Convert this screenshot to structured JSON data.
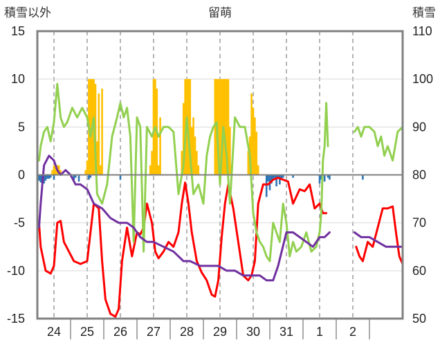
{
  "chart_data": {
    "type": "line",
    "title": "留萌",
    "ylabel_left": "積雪以外",
    "ylabel_right": "積雪",
    "ylim_left": [
      -15,
      15
    ],
    "ylim_right": [
      50,
      110
    ],
    "yticks_left": [
      "15",
      "10",
      "5",
      "0",
      "-5",
      "-10",
      "-15"
    ],
    "yticks_right": [
      "110",
      "100",
      "90",
      "80",
      "70",
      "60",
      "50"
    ],
    "categories": [
      "24",
      "25",
      "26",
      "27",
      "28",
      "29",
      "30",
      "31",
      "1",
      "2"
    ],
    "x_range": [
      23.5,
      34.5
    ],
    "grid": true,
    "colors": {
      "red": "#ff0000",
      "green": "#92d050",
      "purple": "#7030a0",
      "bars_yellow": "#ffc000",
      "bars_blue": "#2e75b6",
      "frame": "#808080",
      "zero_line": "#808080"
    },
    "series": [
      {
        "axis": "left",
        "color": "#ff0000",
        "x": [
          23.55,
          23.6,
          23.75,
          23.9,
          24.0,
          24.1,
          24.2,
          24.3,
          24.45,
          24.6,
          24.8,
          25.0,
          25.2,
          25.35,
          25.45,
          25.55,
          25.7,
          25.85,
          25.95,
          26.05,
          26.2,
          26.35,
          26.5,
          26.6,
          26.7,
          26.8,
          26.95,
          27.05,
          27.15,
          27.3,
          27.45,
          27.6,
          27.75,
          27.85,
          27.95,
          28.05,
          28.15,
          28.3,
          28.45,
          28.6,
          28.75,
          28.85,
          28.95,
          29.05,
          29.15,
          29.25,
          29.4,
          29.55,
          29.7,
          29.85,
          29.95,
          30.05,
          30.15,
          30.3,
          30.45,
          30.6,
          30.75,
          30.9,
          31.05,
          31.2,
          31.4,
          31.55,
          31.7,
          31.85,
          32.0,
          32.1,
          32.2
        ],
        "y": [
          -5,
          -7.5,
          -10,
          -10.3,
          -9.5,
          -5,
          -4.8,
          -7,
          -8,
          -9,
          -9.3,
          -9,
          -3,
          -3.5,
          -9,
          -13,
          -14.5,
          -14.8,
          -14,
          -9,
          -5.5,
          -8.5,
          -6,
          -6.2,
          -5.5,
          -3,
          -5,
          -8,
          -8.7,
          -8,
          -7,
          -7.5,
          -6,
          -3,
          -0.8,
          -3,
          -6,
          -9,
          -10.2,
          -11,
          -12.5,
          -12.7,
          -11,
          -6.5,
          -3,
          -1,
          -3.5,
          -7,
          -10.5,
          -11,
          -10.5,
          -9,
          -3,
          -1,
          -1,
          -0.5,
          -0.3,
          -0.5,
          -0.7,
          -3,
          -1.5,
          -1.7,
          -1,
          -3.5,
          -3,
          -4,
          -4
        ]
      },
      {
        "axis": "left",
        "color": "#ff0000",
        "x": [
          33.1,
          33.2,
          33.3,
          33.45,
          33.6,
          33.75,
          33.9,
          34.05,
          34.2,
          34.3,
          34.4,
          34.5
        ],
        "y": [
          -7.5,
          -8.5,
          -9,
          -7,
          -7.5,
          -5.5,
          -3.5,
          -3.5,
          -3.3,
          -6,
          -8.5,
          -9.3
        ]
      },
      {
        "axis": "left",
        "color": "#92d050",
        "x": [
          23.55,
          23.6,
          23.7,
          23.8,
          23.9,
          24.0,
          24.1,
          24.2,
          24.3,
          24.4,
          24.55,
          24.7,
          24.85,
          25.0,
          25.1,
          25.2,
          25.3,
          25.45,
          25.6,
          25.75,
          25.9,
          26.0,
          26.1,
          26.2,
          26.3,
          26.4,
          26.5,
          26.6,
          26.7,
          26.8,
          26.95,
          27.05,
          27.15,
          27.3,
          27.45,
          27.6,
          27.75,
          27.9,
          28.0,
          28.1,
          28.2,
          28.35,
          28.5,
          28.6,
          28.7,
          28.8,
          28.9,
          29.0,
          29.1,
          29.2,
          29.3,
          29.45,
          29.6,
          29.75,
          29.9,
          30.0,
          30.1,
          30.2,
          30.3,
          30.4,
          30.5,
          30.6,
          30.7,
          30.8,
          30.9,
          31.0,
          31.1,
          31.2,
          31.3,
          31.45,
          31.6,
          31.75,
          31.9,
          32.0,
          32.05,
          32.1,
          32.15,
          32.2,
          32.25
        ],
        "y": [
          1.5,
          3,
          4.5,
          5,
          3.5,
          5.5,
          9.5,
          6,
          5,
          5.5,
          7,
          6,
          7,
          6,
          4,
          6,
          -2,
          -3,
          -1,
          4,
          6,
          7.5,
          6,
          7,
          4,
          -7,
          6,
          5,
          -8,
          5,
          4,
          5,
          4,
          5,
          5,
          4.5,
          -2,
          1,
          6,
          2,
          -2,
          -1,
          -3,
          2,
          4,
          5,
          5.5,
          -1,
          5,
          2,
          -3,
          6,
          5,
          5,
          2,
          -4,
          -6,
          -7,
          -7.5,
          -8.5,
          -9,
          -5,
          -6,
          -7,
          -3,
          -5,
          -8.5,
          -7,
          -8,
          -7.5,
          -6,
          -8,
          -7.5,
          -6,
          -4,
          1.5,
          3,
          7.5,
          3
        ]
      },
      {
        "axis": "left",
        "color": "#92d050",
        "x": [
          33.05,
          33.15,
          33.25,
          33.35,
          33.5,
          33.65,
          33.75,
          33.85,
          33.95,
          34.05,
          34.2,
          34.35,
          34.5
        ],
        "y": [
          4.5,
          5,
          4,
          5,
          5,
          4.5,
          3,
          4,
          2,
          3,
          1.5,
          4.5,
          5
        ]
      },
      {
        "axis": "right",
        "color": "#7030a0",
        "x": [
          23.55,
          23.6,
          23.7,
          23.85,
          24.0,
          24.1,
          24.2,
          24.35,
          24.5,
          24.65,
          24.8,
          25.0,
          25.2,
          25.45,
          25.7,
          25.95,
          26.2,
          26.4,
          26.6,
          26.8,
          27.0,
          27.3,
          27.6,
          27.9,
          28.1,
          28.4,
          28.7,
          28.95,
          29.2,
          29.45,
          29.7,
          29.95,
          30.2,
          30.4,
          30.5,
          30.6,
          30.75,
          31.0,
          31.2,
          31.4,
          31.6,
          31.8,
          32.0,
          32.15,
          32.3
        ],
        "y": [
          69,
          74,
          82,
          84,
          83,
          81,
          80,
          81,
          80,
          78,
          78,
          77,
          74,
          73,
          71,
          70,
          70,
          69,
          67,
          66,
          66,
          65,
          64,
          62,
          62,
          61,
          61,
          61,
          60,
          60,
          59,
          59,
          59,
          58,
          58,
          58,
          61,
          68,
          68,
          67,
          66,
          65,
          67,
          67,
          68
        ]
      },
      {
        "axis": "right",
        "color": "#7030a0",
        "x": [
          33.05,
          33.25,
          33.5,
          33.75,
          34.0,
          34.25,
          34.5
        ],
        "y": [
          68,
          67,
          67,
          66,
          65,
          65,
          65
        ]
      },
      {
        "axis": "right",
        "type": "bar",
        "color": "#ffc000",
        "x": [
          23.95,
          24.0,
          24.05,
          24.1,
          24.15,
          24.2,
          24.95,
          25.0,
          25.05,
          25.1,
          25.15,
          25.2,
          25.25,
          25.3,
          25.35,
          25.4,
          25.45,
          26.9,
          26.95,
          27.0,
          27.05,
          27.1,
          27.15,
          27.2,
          27.85,
          27.9,
          27.95,
          28.0,
          28.05,
          28.1,
          28.15,
          28.2,
          28.25,
          28.3,
          28.35,
          28.85,
          28.9,
          28.95,
          29.0,
          29.05,
          29.1,
          29.15,
          29.2,
          29.25,
          29.3,
          29.35,
          29.85,
          29.9,
          29.95,
          30.0,
          30.05,
          30.1,
          30.15
        ],
        "y": [
          81,
          82,
          82,
          82,
          82,
          81,
          81,
          83,
          100,
          100,
          100,
          100,
          99,
          87,
          97,
          82,
          98,
          82,
          85,
          100,
          100,
          98,
          82,
          92,
          85,
          95,
          100,
          100,
          100,
          100,
          90,
          92,
          88,
          85,
          82,
          100,
          100,
          100,
          100,
          100,
          100,
          100,
          100,
          100,
          90,
          82,
          85,
          88,
          97,
          94,
          92,
          89,
          82
        ]
      },
      {
        "axis": "left",
        "type": "bar",
        "color": "#2e75b6",
        "x": [
          23.55,
          23.6,
          23.65,
          23.7,
          23.75,
          23.8,
          23.85,
          23.9,
          24.0,
          24.6,
          24.65,
          24.75,
          25.05,
          25.1,
          26.0,
          30.4,
          30.45,
          30.5,
          30.55,
          30.6,
          30.65,
          30.7,
          30.75,
          30.8,
          30.85,
          30.9,
          31.2,
          32.0,
          32.05,
          32.15,
          32.25,
          32.3,
          33.3
        ],
        "y": [
          -0.6,
          -0.8,
          -1.1,
          -0.9,
          -0.6,
          -0.4,
          -0.4,
          -0.3,
          -0.5,
          -0.6,
          -0.3,
          -0.7,
          -0.5,
          -0.3,
          -0.5,
          -2.3,
          -0.7,
          -1.6,
          -0.9,
          -0.5,
          -0.3,
          -1.2,
          -0.3,
          -1.0,
          -0.4,
          -0.3,
          -0.3,
          -0.9,
          -0.5,
          -0.7,
          -0.3,
          -0.5,
          -0.5
        ]
      }
    ]
  }
}
